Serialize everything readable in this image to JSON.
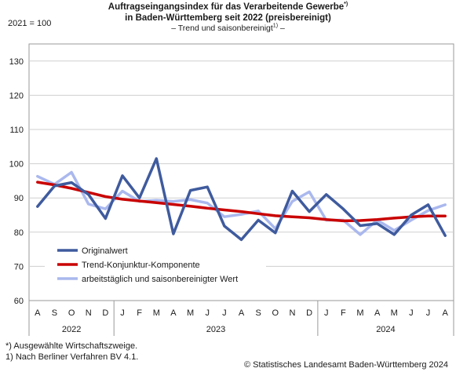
{
  "header": {
    "title_line1": "Auftragseingangsindex für das Verarbeitende Gewerbe",
    "title_line1_mark": "*)",
    "title_line2": "in Baden-Württemberg seit 2022 (preisbereinigt)",
    "subtitle_pre": "– Trend und saisonbereinigt",
    "subtitle_mark": "1)",
    "subtitle_post": " –"
  },
  "chart_data": {
    "type": "line",
    "ylabel": "2021 = 100",
    "ylim": [
      60,
      135
    ],
    "yticks": [
      60,
      70,
      80,
      90,
      100,
      110,
      120,
      130
    ],
    "grid": true,
    "categories": [
      "A",
      "S",
      "O",
      "N",
      "D",
      "J",
      "F",
      "M",
      "A",
      "M",
      "J",
      "J",
      "A",
      "S",
      "O",
      "N",
      "D",
      "J",
      "F",
      "M",
      "A",
      "M",
      "J",
      "J",
      "A"
    ],
    "year_labels": [
      {
        "label": "2022",
        "start": 0,
        "end": 4
      },
      {
        "label": "2023",
        "start": 5,
        "end": 16
      },
      {
        "label": "2024",
        "start": 17,
        "end": 24
      }
    ],
    "legend_position": "bottom-left",
    "series": [
      {
        "name": "Originalwert",
        "color": "#3f5b9e",
        "width": 3.5,
        "values": [
          87.5,
          93.5,
          94.5,
          91,
          84,
          96.5,
          90,
          101.5,
          79.5,
          92.2,
          93.2,
          81.8,
          77.8,
          83.5,
          79.8,
          92,
          86,
          91,
          86.8,
          81.9,
          82.5,
          79.3,
          85,
          88,
          79
        ]
      },
      {
        "name": "Trend-Konjunktur-Komponente",
        "color": "#c90000",
        "width": 3.5,
        "values": [
          94.6,
          93.8,
          92.8,
          91.6,
          90.4,
          89.6,
          89.1,
          88.6,
          88.1,
          87.6,
          87,
          86.5,
          86,
          85.4,
          84.8,
          84.5,
          84.2,
          83.7,
          83.3,
          83.4,
          83.7,
          84.1,
          84.5,
          84.7,
          84.7
        ]
      },
      {
        "name": "arbeitstäglich und saisonbereinigter Wert",
        "color": "#aab8ee",
        "width": 3.5,
        "values": [
          96.3,
          94,
          97.5,
          88.2,
          86.8,
          92,
          89,
          89.3,
          89,
          89.5,
          88.5,
          84.5,
          85.2,
          86.2,
          81,
          89,
          91.8,
          83.5,
          83.5,
          79.3,
          83.5,
          80.5,
          83.5,
          86.3,
          88
        ]
      }
    ]
  },
  "footer": {
    "note1": "*) Ausgewählte Wirtschaftszweige.",
    "note2": "1) Nach Berliner Verfahren BV 4.1.",
    "credit": "© Statistisches Landesamt Baden-Württemberg 2024"
  }
}
